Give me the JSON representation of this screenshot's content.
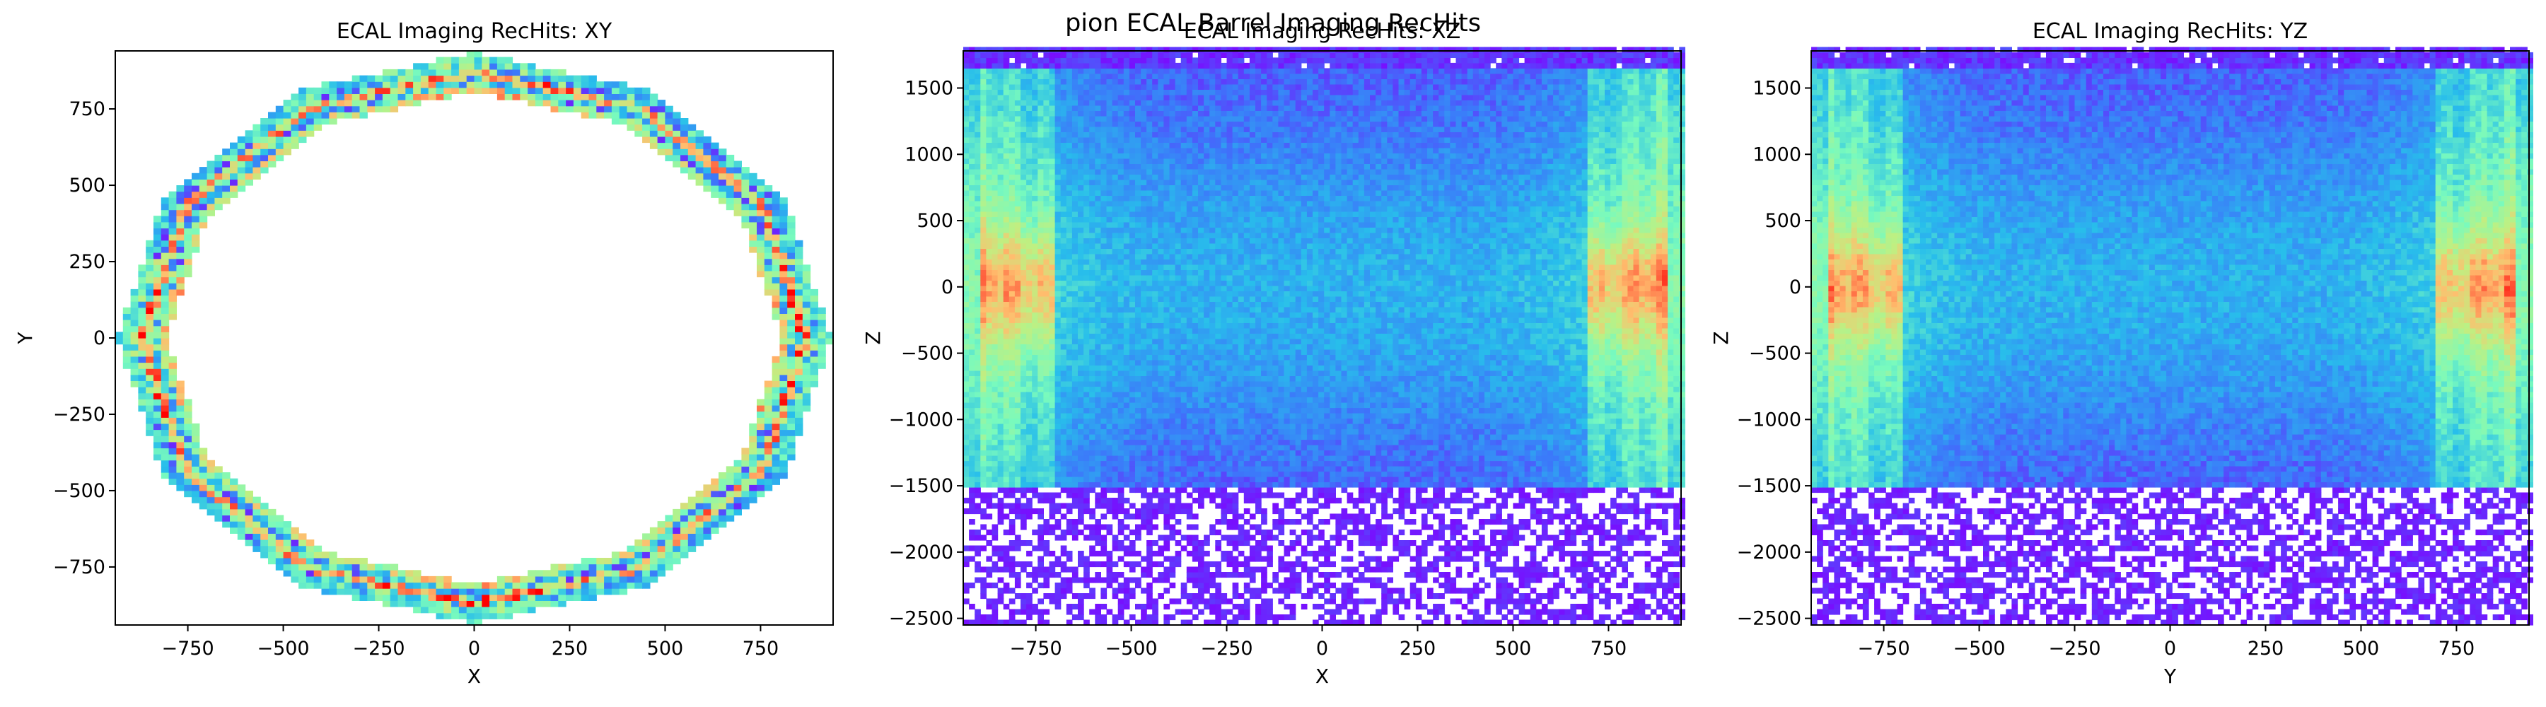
{
  "figure": {
    "suptitle": "pion ECAL Barrel Imaging RecHits"
  },
  "chart_data": [
    {
      "type": "heatmap",
      "title": "ECAL Imaging RecHits: XY",
      "xlabel": "X",
      "ylabel": "Y",
      "xlim": [
        -940,
        940
      ],
      "ylim": [
        -940,
        940
      ],
      "xticks": [
        -750,
        -500,
        -250,
        0,
        250,
        500,
        750
      ],
      "yticks": [
        -750,
        -500,
        -250,
        0,
        250,
        500,
        750
      ],
      "colormap": "rainbow",
      "structure": "12-sided barrel ring, inner radius ~810, outer radius ~935",
      "grid": false
    },
    {
      "type": "heatmap",
      "title": "ECAL Imaging RecHits: XZ",
      "xlabel": "X",
      "ylabel": "Z",
      "xlim": [
        -940,
        940
      ],
      "ylim": [
        -2550,
        1780
      ],
      "xticks": [
        -750,
        -500,
        -250,
        0,
        250,
        500,
        750
      ],
      "yticks": [
        -2500,
        -2000,
        -1500,
        -1000,
        -500,
        0,
        500,
        1000,
        1500
      ],
      "colormap": "rainbow",
      "hotspot_x": [
        -800,
        800
      ],
      "hotspot_z": 0,
      "grid": false
    },
    {
      "type": "heatmap",
      "title": "ECAL Imaging RecHits: YZ",
      "xlabel": "Y",
      "ylabel": "Z",
      "xlim": [
        -940,
        940
      ],
      "ylim": [
        -2550,
        1780
      ],
      "xticks": [
        -750,
        -500,
        -250,
        0,
        250,
        500,
        750
      ],
      "yticks": [
        -2500,
        -2000,
        -1500,
        -1000,
        -500,
        0,
        500,
        1000,
        1500
      ],
      "colormap": "rainbow",
      "hotspot_x": [
        -800,
        800
      ],
      "hotspot_z": 0,
      "grid": false
    }
  ]
}
